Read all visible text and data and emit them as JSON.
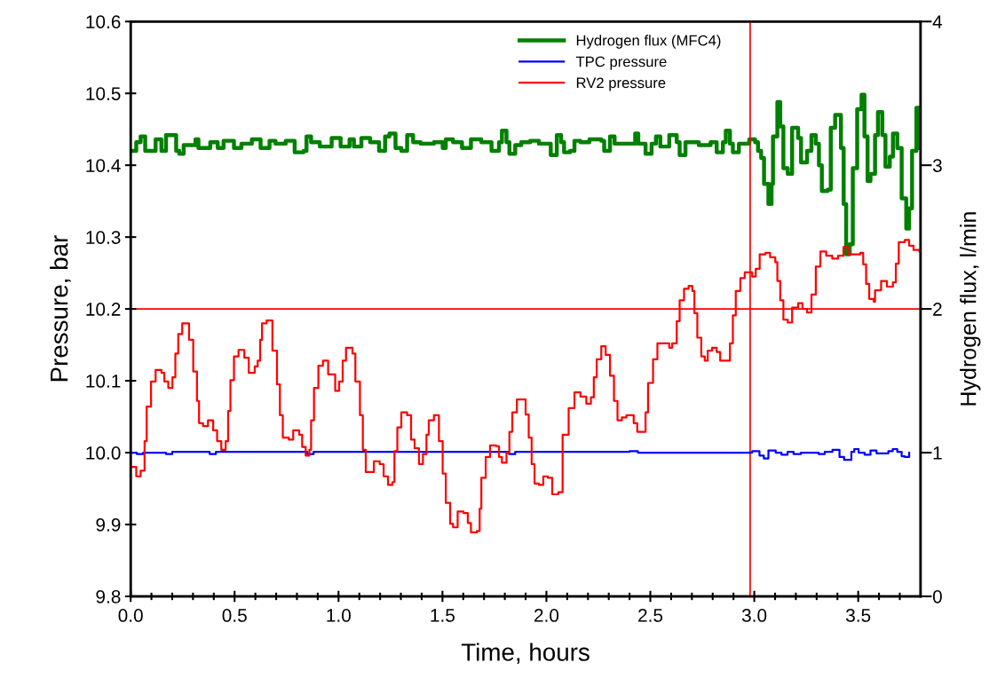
{
  "chart_data": {
    "type": "step",
    "xlabel": "Time, hours",
    "ylabel": "Pressure, bar",
    "y2label": "Hydrogen flux, l/min",
    "xlim": [
      0,
      3.8
    ],
    "ylim": [
      9.8,
      10.6
    ],
    "y2lim": [
      0,
      4
    ],
    "xticks": [
      {
        "value": 0,
        "label": "0.0"
      },
      {
        "value": 0.1,
        "label": null
      },
      {
        "value": 0.2,
        "label": null
      },
      {
        "value": 0.3,
        "label": null
      },
      {
        "value": 0.4,
        "label": null
      },
      {
        "value": 0.5,
        "label": "0.5"
      },
      {
        "value": 0.6,
        "label": null
      },
      {
        "value": 0.7,
        "label": null
      },
      {
        "value": 0.8,
        "label": null
      },
      {
        "value": 0.9,
        "label": null
      },
      {
        "value": 1.0,
        "label": "1.0"
      },
      {
        "value": 1.1,
        "label": null
      },
      {
        "value": 1.2,
        "label": null
      },
      {
        "value": 1.3,
        "label": null
      },
      {
        "value": 1.4,
        "label": null
      },
      {
        "value": 1.5,
        "label": "1.5"
      },
      {
        "value": 1.6,
        "label": null
      },
      {
        "value": 1.7,
        "label": null
      },
      {
        "value": 1.8,
        "label": null
      },
      {
        "value": 1.9,
        "label": null
      },
      {
        "value": 2.0,
        "label": "2.0"
      },
      {
        "value": 2.1,
        "label": null
      },
      {
        "value": 2.2,
        "label": null
      },
      {
        "value": 2.3,
        "label": null
      },
      {
        "value": 2.4,
        "label": null
      },
      {
        "value": 2.5,
        "label": "2.5"
      },
      {
        "value": 2.6,
        "label": null
      },
      {
        "value": 2.7,
        "label": null
      },
      {
        "value": 2.8,
        "label": null
      },
      {
        "value": 2.9,
        "label": null
      },
      {
        "value": 3.0,
        "label": "3.0"
      },
      {
        "value": 3.1,
        "label": null
      },
      {
        "value": 3.2,
        "label": null
      },
      {
        "value": 3.3,
        "label": null
      },
      {
        "value": 3.4,
        "label": null
      },
      {
        "value": 3.5,
        "label": "3.5"
      },
      {
        "value": 3.6,
        "label": null
      },
      {
        "value": 3.7,
        "label": null
      }
    ],
    "yticks": [
      {
        "value": 9.8,
        "label": "9.8"
      },
      {
        "value": 9.9,
        "label": "9.9"
      },
      {
        "value": 10.0,
        "label": "10.0"
      },
      {
        "value": 10.1,
        "label": "10.1"
      },
      {
        "value": 10.2,
        "label": "10.2"
      },
      {
        "value": 10.3,
        "label": "10.3"
      },
      {
        "value": 10.4,
        "label": "10.4"
      },
      {
        "value": 10.5,
        "label": "10.5"
      },
      {
        "value": 10.6,
        "label": "10.6"
      }
    ],
    "y2ticks": [
      0,
      1,
      2,
      3,
      4
    ],
    "grid": false,
    "legend": "top",
    "ref_lines": [
      {
        "axis": "y",
        "value": 10.2,
        "color": "#ff0000"
      },
      {
        "axis": "x",
        "value": 2.98,
        "color": "#ff0000"
      }
    ],
    "series": [
      {
        "name": "Hydrogen flux (MFC4)",
        "color": "#008000",
        "axis": "y2",
        "x": [
          0,
          0.027,
          0.048,
          0.07,
          0.113,
          0.12,
          0.148,
          0.17,
          0.205,
          0.219,
          0.234,
          0.255,
          0.312,
          0.326,
          0.362,
          0.383,
          0.419,
          0.447,
          0.497,
          0.533,
          0.583,
          0.625,
          0.668,
          0.697,
          0.746,
          0.789,
          0.832,
          0.846,
          0.868,
          0.91,
          0.967,
          1.01,
          1.053,
          1.074,
          1.11,
          1.152,
          1.195,
          1.224,
          1.245,
          1.274,
          1.302,
          1.33,
          1.359,
          1.395,
          1.459,
          1.501,
          1.516,
          1.551,
          1.594,
          1.637,
          1.687,
          1.736,
          1.772,
          1.786,
          1.808,
          1.822,
          1.85,
          1.879,
          1.922,
          1.964,
          2.007,
          2.021,
          2.05,
          2.071,
          2.085,
          2.114,
          2.135,
          2.164,
          2.207,
          2.264,
          2.278,
          2.306,
          2.328,
          2.378,
          2.427,
          2.442,
          2.477,
          2.506,
          2.527,
          2.548,
          2.591,
          2.627,
          2.641,
          2.669,
          2.733,
          2.79,
          2.819,
          2.849,
          2.863,
          2.883,
          2.897,
          2.926,
          2.976,
          3.004,
          3.018,
          3.033,
          3.047,
          3.068,
          3.083,
          3.09,
          3.111,
          3.125,
          3.14,
          3.161,
          3.182,
          3.211,
          3.225,
          3.254,
          3.275,
          3.296,
          3.311,
          3.325,
          3.353,
          3.368,
          3.389,
          3.417,
          3.43,
          3.442,
          3.459,
          3.474,
          3.495,
          3.516,
          3.53,
          3.545,
          3.559,
          3.581,
          3.595,
          3.616,
          3.631,
          3.652,
          3.667,
          3.688,
          3.709,
          3.731,
          3.745,
          3.759,
          3.78,
          3.795
        ],
        "values": [
          3.1,
          3.16,
          3.2,
          3.1,
          3.1,
          3.18,
          3.1,
          3.21,
          3.21,
          3.1,
          3.08,
          3.14,
          3.18,
          3.12,
          3.12,
          3.16,
          3.12,
          3.17,
          3.12,
          3.15,
          3.18,
          3.12,
          3.17,
          3.15,
          3.17,
          3.09,
          3.1,
          3.2,
          3.16,
          3.13,
          3.19,
          3.13,
          3.18,
          3.13,
          3.19,
          3.16,
          3.1,
          3.2,
          3.22,
          3.12,
          3.1,
          3.21,
          3.16,
          3.15,
          3.16,
          3.12,
          3.18,
          3.16,
          3.12,
          3.18,
          3.16,
          3.1,
          3.16,
          3.24,
          3.16,
          3.08,
          3.14,
          3.16,
          3.17,
          3.15,
          3.15,
          3.07,
          3.21,
          3.16,
          3.09,
          3.1,
          3.17,
          3.16,
          3.18,
          3.17,
          3.1,
          3.2,
          3.15,
          3.15,
          3.22,
          3.15,
          3.08,
          3.15,
          3.2,
          3.13,
          3.21,
          3.16,
          3.07,
          3.16,
          3.14,
          3.16,
          3.09,
          3.16,
          3.24,
          3.15,
          3.09,
          3.15,
          3.18,
          3.16,
          3.1,
          3.05,
          2.87,
          2.73,
          2.87,
          3.2,
          3.44,
          3.27,
          2.98,
          2.94,
          3.26,
          3.19,
          3.02,
          3.1,
          3.21,
          3.15,
          3.0,
          2.82,
          2.83,
          3.26,
          3.35,
          3.12,
          2.73,
          2.38,
          2.45,
          2.98,
          3.39,
          3.49,
          3.2,
          2.89,
          2.94,
          3.21,
          3.37,
          3.21,
          2.99,
          3.06,
          3.22,
          3.12,
          2.77,
          2.56,
          2.7,
          3.1,
          3.4,
          3.12
        ]
      },
      {
        "name": "TPC pressure",
        "color": "#0000ff",
        "x": [
          0,
          0.03,
          0.06,
          0.17,
          0.2,
          0.38,
          0.41,
          0.85,
          0.88,
          1.79,
          1.82,
          1.85,
          2.4,
          2.44,
          2.99,
          3.025,
          3.046,
          3.068,
          3.103,
          3.131,
          3.16,
          3.189,
          3.224,
          3.31,
          3.339,
          3.376,
          3.41,
          3.432,
          3.467,
          3.481,
          3.502,
          3.531,
          3.559,
          3.588,
          3.645,
          3.666,
          3.688,
          3.709,
          3.724,
          3.745
        ],
        "values": [
          10.0,
          9.998,
          10.0,
          9.998,
          10.001,
          9.998,
          10.001,
          9.998,
          10.001,
          10.001,
          9.998,
          10.001,
          10.002,
          10.0,
          10.002,
          9.996,
          9.992,
          10.003,
          10.0,
          9.997,
          10.001,
          9.998,
          10.0,
          9.998,
          10.001,
          10.004,
          9.994,
          9.99,
          10.001,
          10.005,
          10.0,
          9.997,
          10.003,
          9.999,
          10.002,
          10.005,
          10.001,
          9.995,
          9.994,
          10.0
        ]
      },
      {
        "name": "RV2 pressure",
        "color": "#ff0000",
        "x": [
          0,
          0.027,
          0.048,
          0.067,
          0.077,
          0.098,
          0.12,
          0.148,
          0.162,
          0.181,
          0.201,
          0.215,
          0.229,
          0.248,
          0.281,
          0.301,
          0.319,
          0.329,
          0.348,
          0.372,
          0.397,
          0.416,
          0.436,
          0.457,
          0.469,
          0.48,
          0.497,
          0.519,
          0.547,
          0.568,
          0.597,
          0.611,
          0.623,
          0.632,
          0.654,
          0.682,
          0.704,
          0.718,
          0.732,
          0.761,
          0.782,
          0.811,
          0.825,
          0.842,
          0.86,
          0.868,
          0.882,
          0.903,
          0.925,
          0.95,
          0.984,
          1.003,
          1.02,
          1.036,
          1.067,
          1.081,
          1.103,
          1.117,
          1.131,
          1.17,
          1.198,
          1.217,
          1.238,
          1.259,
          1.269,
          1.283,
          1.302,
          1.33,
          1.349,
          1.366,
          1.387,
          1.406,
          1.423,
          1.434,
          1.459,
          1.483,
          1.501,
          1.516,
          1.537,
          1.551,
          1.573,
          1.601,
          1.622,
          1.637,
          1.665,
          1.679,
          1.687,
          1.708,
          1.729,
          1.758,
          1.772,
          1.786,
          1.808,
          1.822,
          1.836,
          1.858,
          1.9,
          1.915,
          1.929,
          1.943,
          1.964,
          1.985,
          2.007,
          2.028,
          2.057,
          2.078,
          2.107,
          2.135,
          2.164,
          2.192,
          2.214,
          2.228,
          2.242,
          2.264,
          2.285,
          2.306,
          2.325,
          2.342,
          2.363,
          2.385,
          2.42,
          2.437,
          2.463,
          2.477,
          2.489,
          2.513,
          2.534,
          2.57,
          2.591,
          2.605,
          2.627,
          2.641,
          2.662,
          2.684,
          2.702,
          2.712,
          2.726,
          2.745,
          2.762,
          2.776,
          2.797,
          2.819,
          2.836,
          2.861,
          2.883,
          2.897,
          2.911,
          2.933,
          2.954,
          2.976,
          2.99,
          3.007,
          3.026,
          3.054,
          3.076,
          3.101,
          3.111,
          3.125,
          3.14,
          3.161,
          3.182,
          3.211,
          3.232,
          3.254,
          3.275,
          3.296,
          3.318,
          3.346,
          3.375,
          3.403,
          3.429,
          3.453,
          3.51,
          3.524,
          3.538,
          3.553,
          3.574,
          3.581,
          3.61,
          3.638,
          3.667,
          3.681,
          3.695,
          3.724,
          3.745,
          3.766,
          3.795
        ],
        "values": [
          9.98,
          9.967,
          9.975,
          10.016,
          10.064,
          10.099,
          10.115,
          10.111,
          10.099,
          10.09,
          10.105,
          10.138,
          10.165,
          10.18,
          10.157,
          10.113,
          10.072,
          10.041,
          10.037,
          10.045,
          10.031,
          10.016,
          10.004,
          10.016,
          10.058,
          10.101,
          10.134,
          10.143,
          10.132,
          10.111,
          10.12,
          10.128,
          10.157,
          10.18,
          10.184,
          10.142,
          10.095,
          10.052,
          10.021,
          10.018,
          10.031,
          10.025,
          10.008,
          9.996,
          10.004,
          10.045,
          10.09,
          10.121,
          10.128,
          10.109,
          10.086,
          10.099,
          10.128,
          10.146,
          10.138,
          10.099,
          10.052,
          10.004,
          9.973,
          9.988,
          9.984,
          9.967,
          9.955,
          9.959,
          10.002,
          10.035,
          10.056,
          10.052,
          10.018,
          10.006,
          9.984,
          9.998,
          10.025,
          10.045,
          10.052,
          10.016,
          9.971,
          9.93,
          9.901,
          9.896,
          9.918,
          9.916,
          9.902,
          9.889,
          9.891,
          9.922,
          9.965,
          9.994,
          10.01,
          10.009,
          9.994,
          9.986,
          10.0,
          10.029,
          10.056,
          10.074,
          10.053,
          10.021,
          9.984,
          9.957,
          9.955,
          9.967,
          9.965,
          9.942,
          9.945,
          10.025,
          10.062,
          10.084,
          10.078,
          10.068,
          10.077,
          10.105,
          10.13,
          10.148,
          10.136,
          10.107,
          10.072,
          10.045,
          10.049,
          10.052,
          10.041,
          10.029,
          10.029,
          10.056,
          10.097,
          10.13,
          10.152,
          10.152,
          10.146,
          10.152,
          10.183,
          10.212,
          10.228,
          10.232,
          10.225,
          10.194,
          10.16,
          10.134,
          10.128,
          10.142,
          10.146,
          10.14,
          10.128,
          10.128,
          10.152,
          10.191,
          10.225,
          10.243,
          10.251,
          10.251,
          10.245,
          10.256,
          10.276,
          10.278,
          10.272,
          10.265,
          10.239,
          10.212,
          10.185,
          10.181,
          10.202,
          10.208,
          10.2,
          10.195,
          10.22,
          10.259,
          10.28,
          10.274,
          10.27,
          10.274,
          10.286,
          10.276,
          10.278,
          10.262,
          10.235,
          10.214,
          10.21,
          10.226,
          10.239,
          10.231,
          10.237,
          10.263,
          10.293,
          10.296,
          10.288,
          10.282,
          10.28
        ]
      }
    ]
  }
}
